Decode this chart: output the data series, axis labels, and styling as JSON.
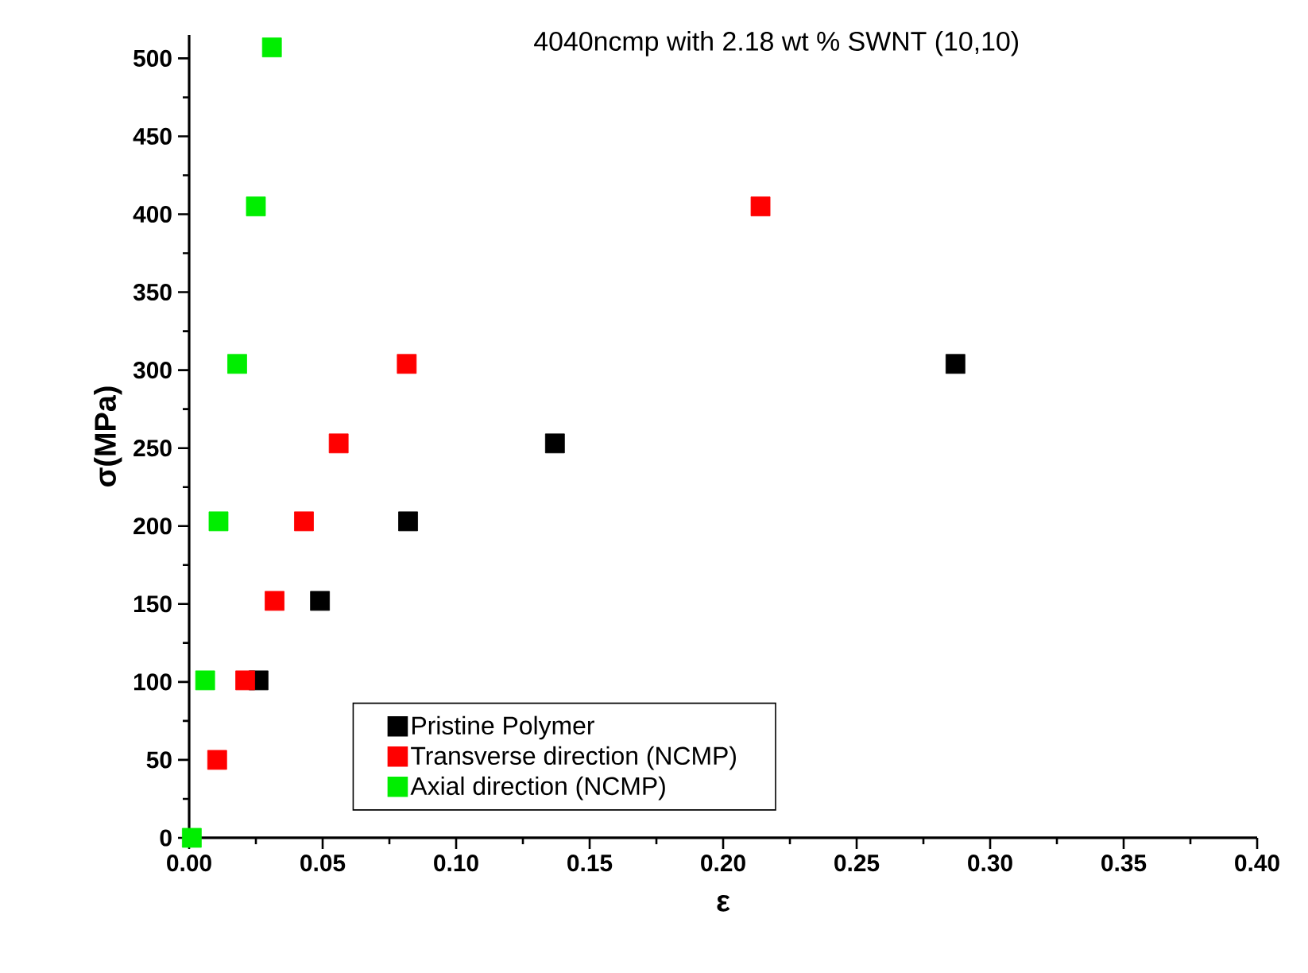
{
  "chart_data": {
    "type": "scatter",
    "title": "4040ncmp with 2.18 wt % SWNT (10,10)",
    "xlabel": "ε",
    "ylabel": "σ(MPa)",
    "xlim": [
      0,
      0.4
    ],
    "ylim": [
      0,
      515
    ],
    "xticks": [
      {
        "value": 0,
        "label": "0.00"
      },
      0.05,
      {
        "value": 0.1,
        "label": "0.10"
      },
      0.15,
      {
        "value": 0.2,
        "label": "0.20"
      },
      0.25,
      {
        "value": 0.3,
        "label": "0.30"
      },
      0.35,
      {
        "value": 0.4,
        "label": "0.40"
      }
    ],
    "yticks": [
      0,
      50,
      100,
      150,
      200,
      250,
      300,
      350,
      400,
      450,
      500
    ],
    "marker": "square",
    "legend": "bottom",
    "grid": false,
    "series": [
      {
        "name": "Pristine Polymer",
        "color": "#000000",
        "x": [
          0.026,
          0.049,
          0.082,
          0.137,
          0.287
        ],
        "values": [
          101,
          152,
          203,
          253,
          304
        ]
      },
      {
        "name": "Transverse direction (NCMP)",
        "color": "#ff0000",
        "x": [
          0.0105,
          0.021,
          0.032,
          0.043,
          0.056,
          0.0815,
          0.214
        ],
        "values": [
          50,
          101,
          152,
          203,
          253,
          304,
          405
        ]
      },
      {
        "name": "Axial direction (NCMP)",
        "color": "#00ee00",
        "x": [
          0.001,
          0.006,
          0.011,
          0.018,
          0.025,
          0.031
        ],
        "values": [
          0,
          101,
          203,
          304,
          405,
          507
        ]
      }
    ]
  }
}
